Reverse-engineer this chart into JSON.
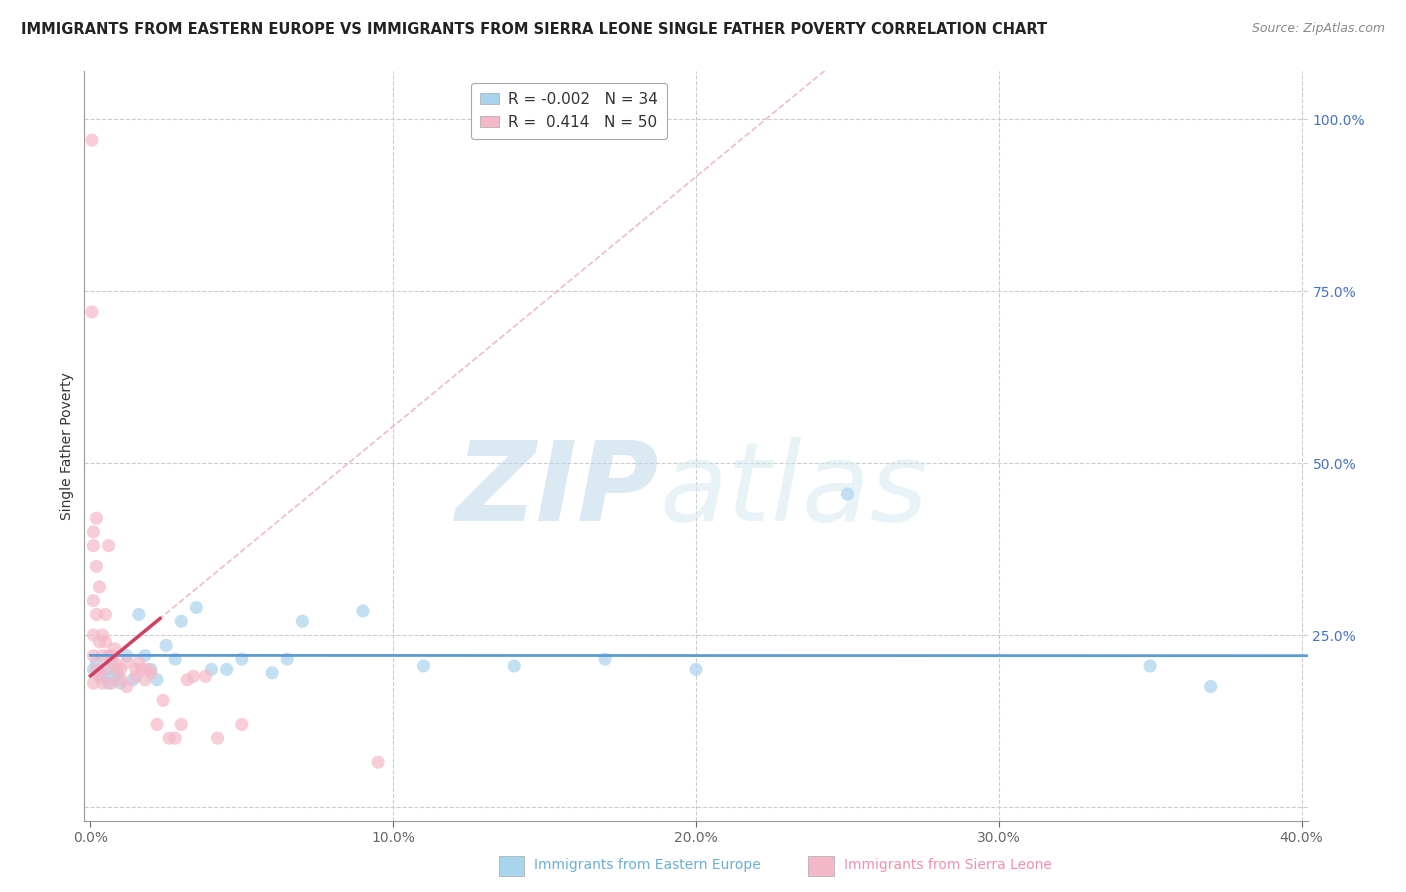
{
  "title": "IMMIGRANTS FROM EASTERN EUROPE VS IMMIGRANTS FROM SIERRA LEONE SINGLE FATHER POVERTY CORRELATION CHART",
  "source": "Source: ZipAtlas.com",
  "ylabel": "Single Father Poverty",
  "legend_label1": "Immigrants from Eastern Europe",
  "legend_label2": "Immigrants from Sierra Leone",
  "R1": -0.002,
  "N1": 34,
  "R2": 0.414,
  "N2": 50,
  "xlim": [
    -0.002,
    0.402
  ],
  "ylim": [
    -0.02,
    1.07
  ],
  "xticks": [
    0.0,
    0.1,
    0.2,
    0.3,
    0.4
  ],
  "xtick_labels": [
    "0.0%",
    "10.0%",
    "20.0%",
    "30.0%",
    "40.0%"
  ],
  "yticks": [
    0.0,
    0.25,
    0.5,
    0.75,
    1.0
  ],
  "ytick_labels": [
    "",
    "25.0%",
    "50.0%",
    "75.0%",
    "100.0%"
  ],
  "color_blue": "#A8D4ED",
  "color_pink": "#F4B8C8",
  "trendline_blue": "#5B9BD5",
  "trendline_pink": "#D04060",
  "trendline_pink_dashed": "#E8A0B0",
  "background": "#FFFFFF",
  "grid_color": "#CCCCCC",
  "watermark": "ZIPatlas",
  "watermark_color": "#C8DCF0",
  "blue_x": [
    0.001,
    0.002,
    0.003,
    0.004,
    0.005,
    0.006,
    0.007,
    0.008,
    0.009,
    0.01,
    0.012,
    0.014,
    0.016,
    0.018,
    0.02,
    0.022,
    0.025,
    0.028,
    0.03,
    0.035,
    0.04,
    0.045,
    0.05,
    0.06,
    0.065,
    0.07,
    0.09,
    0.11,
    0.14,
    0.17,
    0.2,
    0.25,
    0.35,
    0.37
  ],
  "blue_y": [
    0.2,
    0.21,
    0.195,
    0.19,
    0.2,
    0.18,
    0.21,
    0.19,
    0.195,
    0.18,
    0.22,
    0.185,
    0.28,
    0.22,
    0.2,
    0.185,
    0.235,
    0.215,
    0.27,
    0.29,
    0.2,
    0.2,
    0.215,
    0.195,
    0.215,
    0.27,
    0.285,
    0.205,
    0.205,
    0.215,
    0.2,
    0.455,
    0.205,
    0.175
  ],
  "pink_x": [
    0.0005,
    0.0005,
    0.001,
    0.001,
    0.001,
    0.001,
    0.001,
    0.001,
    0.002,
    0.002,
    0.002,
    0.002,
    0.003,
    0.003,
    0.003,
    0.004,
    0.004,
    0.004,
    0.005,
    0.005,
    0.005,
    0.006,
    0.006,
    0.007,
    0.007,
    0.008,
    0.008,
    0.009,
    0.01,
    0.01,
    0.012,
    0.012,
    0.015,
    0.015,
    0.016,
    0.017,
    0.018,
    0.019,
    0.02,
    0.022,
    0.024,
    0.026,
    0.028,
    0.03,
    0.032,
    0.034,
    0.038,
    0.042,
    0.05,
    0.095
  ],
  "pink_y": [
    0.97,
    0.72,
    0.4,
    0.38,
    0.3,
    0.25,
    0.22,
    0.18,
    0.42,
    0.35,
    0.28,
    0.2,
    0.32,
    0.24,
    0.19,
    0.25,
    0.22,
    0.18,
    0.28,
    0.24,
    0.2,
    0.38,
    0.22,
    0.22,
    0.18,
    0.23,
    0.21,
    0.2,
    0.2,
    0.185,
    0.21,
    0.175,
    0.2,
    0.19,
    0.21,
    0.2,
    0.185,
    0.2,
    0.195,
    0.12,
    0.155,
    0.1,
    0.1,
    0.12,
    0.185,
    0.19,
    0.19,
    0.1,
    0.12,
    0.065
  ],
  "title_fontsize": 10.5,
  "source_fontsize": 9,
  "axis_label_fontsize": 10,
  "tick_fontsize": 10,
  "legend_fontsize": 11
}
